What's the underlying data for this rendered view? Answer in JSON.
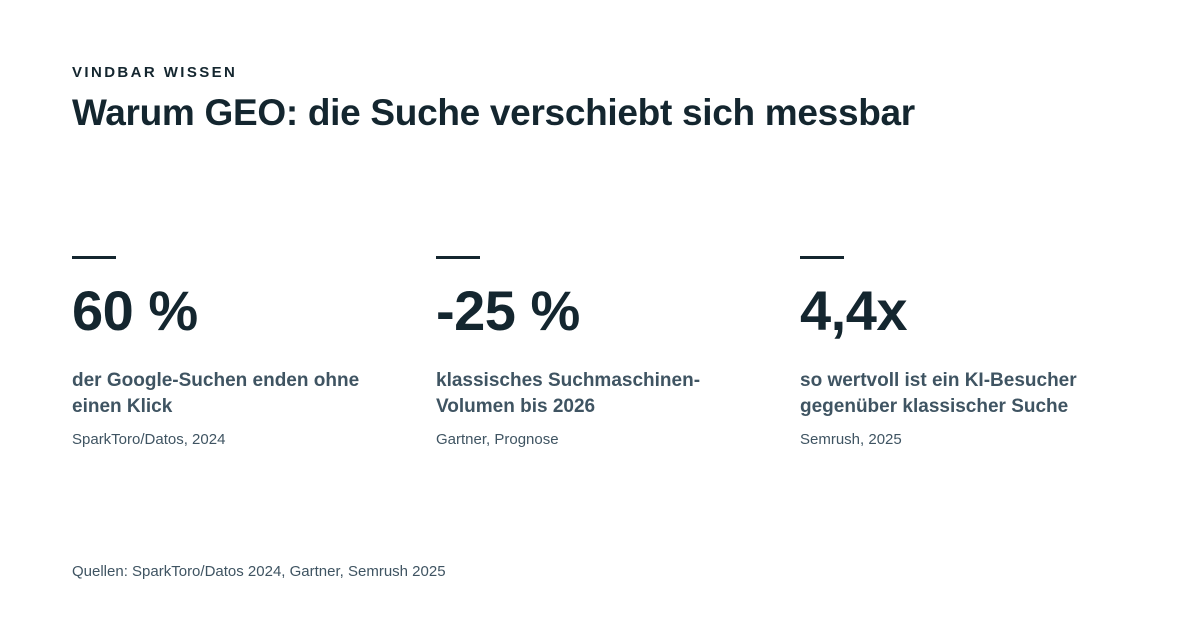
{
  "header": {
    "kicker": "VINDBAR WISSEN",
    "title": "Warum GEO: die Suche verschiebt sich messbar"
  },
  "stats": [
    {
      "value": "60 %",
      "description": "der Google-Suchen enden ohne einen Klick",
      "source": "SparkToro/Datos, 2024"
    },
    {
      "value": "-25 %",
      "description": "klassisches Suchmaschinen-Volumen bis 2026",
      "source": "Gartner, Prognose"
    },
    {
      "value": "4,4x",
      "description": "so wertvoll ist ein KI-Besucher gegenüber klassischer Suche",
      "source": "Semrush, 2025"
    }
  ],
  "footer": {
    "sources": "Quellen: SparkToro/Datos 2024, Gartner, Semrush 2025"
  }
}
